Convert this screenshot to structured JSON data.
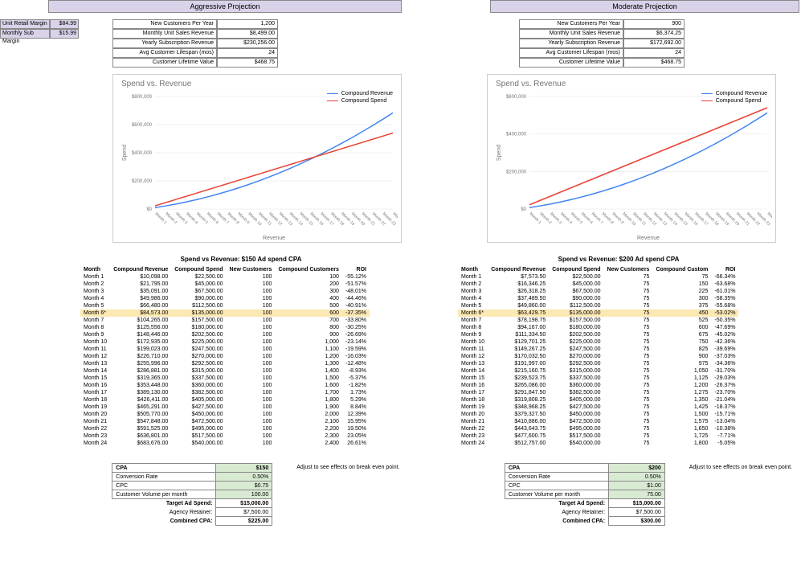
{
  "headers": {
    "aggressive": "Aggressive Projection",
    "moderate": "Moderate Projection"
  },
  "margins": {
    "retail_label": "Unit Retail Margin",
    "retail_val": "$84.99",
    "sub_label": "Monthly Sub Margin",
    "sub_val": "$15.99"
  },
  "metrics_labels": [
    "New Customers Per Year",
    "Monthly Unit Sales Revenue",
    "Yearly Subscription Revenue",
    "Avg Customer Lifespan (mos)",
    "Customer Lifetime Value"
  ],
  "agg_metrics": [
    "1,200",
    "$8,499.00",
    "$230,256.00",
    "24",
    "$468.75"
  ],
  "mod_metrics": [
    "900",
    "$6,374.25",
    "$172,692.00",
    "24",
    "$468.75"
  ],
  "chart": {
    "title": "Spend vs. Revenue",
    "legend_rev": "Compound Revenue",
    "legend_spend": "Compound Spend",
    "colors": {
      "revenue": "#4285f4",
      "spend": "#ea4335",
      "axis": "#757575",
      "grid": "#e0e0e0"
    },
    "xlabels": [
      "Month 1",
      "Month 2",
      "Month 3",
      "Month 4",
      "Month 5",
      "Month 6",
      "Month 7",
      "Month 8",
      "Month 9",
      "Month 10",
      "Month 11",
      "Month 12",
      "Month 13",
      "Month 14",
      "Month 15",
      "Month 16",
      "Month 17",
      "Month 18",
      "Month 19",
      "Month 20",
      "Month 21",
      "Month 22",
      "Month 23",
      "Month 24"
    ],
    "agg": {
      "ylim": [
        0,
        800000
      ],
      "ytick_step": 200000,
      "revenue": [
        10098,
        21795,
        35091,
        49986,
        66480,
        84573,
        104265,
        125556,
        148446,
        172935,
        199023,
        226710,
        255996,
        286881,
        319365,
        353448,
        389130,
        426411,
        465291,
        505770,
        547848,
        591525,
        636801,
        683676
      ],
      "spend": [
        22500,
        45000,
        67500,
        90000,
        112500,
        135000,
        157500,
        180000,
        202500,
        225000,
        247500,
        270000,
        292500,
        315000,
        337500,
        360000,
        382500,
        405000,
        427500,
        450000,
        472500,
        495000,
        517500,
        540000
      ]
    },
    "mod": {
      "ylim": [
        0,
        600000
      ],
      "ytick_step": 200000,
      "revenue": [
        7573,
        16346,
        26318,
        37489,
        49860,
        63429,
        78198,
        94167,
        111334,
        129701,
        149267,
        170032,
        191997,
        215160,
        239523,
        265086,
        291847,
        319808,
        348968,
        379327,
        410886,
        443643,
        477600,
        512757
      ],
      "spend": [
        22500,
        45000,
        67500,
        90000,
        112500,
        135000,
        157500,
        180000,
        202500,
        225000,
        247500,
        270000,
        292500,
        315000,
        337500,
        360000,
        382500,
        405000,
        427500,
        450000,
        472500,
        495000,
        517500,
        540000
      ]
    }
  },
  "tables": {
    "agg_title": "Spend vs Revenue: $150 Ad spend CPA",
    "mod_title": "Spend vs Revenue: $200 Ad spend CPA",
    "cols_full": [
      "Month",
      "Compound Revenue",
      "Compound Spend",
      "New Customers",
      "Compound Customers",
      "ROI"
    ],
    "cols_mod": [
      "Month",
      "Compound Revenue",
      "Compound Spend",
      "New Customers",
      "Compound Custom",
      "ROI"
    ],
    "highlight_idx": 5,
    "agg_rows": [
      [
        "Month 1",
        "$10,098.00",
        "$22,500.00",
        "100",
        "100",
        "-55.12%"
      ],
      [
        "Month 2",
        "$21,795.00",
        "$45,000.00",
        "100",
        "200",
        "-51.57%"
      ],
      [
        "Month 3",
        "$35,091.00",
        "$67,500.00",
        "100",
        "300",
        "-48.01%"
      ],
      [
        "Month 4",
        "$49,986.00",
        "$90,000.00",
        "100",
        "400",
        "-44.46%"
      ],
      [
        "Month 5",
        "$66,480.00",
        "$112,500.00",
        "100",
        "500",
        "-40.91%"
      ],
      [
        "Month 6*",
        "$84,573.00",
        "$135,000.00",
        "100",
        "600",
        "-37.35%"
      ],
      [
        "Month 7",
        "$104,265.00",
        "$157,500.00",
        "100",
        "700",
        "-33.80%"
      ],
      [
        "Month 8",
        "$125,556.00",
        "$180,000.00",
        "100",
        "800",
        "-30.25%"
      ],
      [
        "Month 9",
        "$148,446.00",
        "$202,500.00",
        "100",
        "900",
        "-26.69%"
      ],
      [
        "Month 10",
        "$172,935.00",
        "$225,000.00",
        "100",
        "1,000",
        "-23.14%"
      ],
      [
        "Month 11",
        "$199,023.00",
        "$247,500.00",
        "100",
        "1,100",
        "-19.59%"
      ],
      [
        "Month 12",
        "$226,710.00",
        "$270,000.00",
        "100",
        "1,200",
        "-16.03%"
      ],
      [
        "Month 13",
        "$255,996.00",
        "$292,500.00",
        "100",
        "1,300",
        "-12.48%"
      ],
      [
        "Month 14",
        "$286,881.00",
        "$315,000.00",
        "100",
        "1,400",
        "-8.93%"
      ],
      [
        "Month 15",
        "$319,365.00",
        "$337,500.00",
        "100",
        "1,500",
        "-5.37%"
      ],
      [
        "Month 16",
        "$353,448.00",
        "$360,000.00",
        "100",
        "1,600",
        "-1.82%"
      ],
      [
        "Month 17",
        "$389,130.00",
        "$382,500.00",
        "100",
        "1,700",
        "1.73%"
      ],
      [
        "Month 18",
        "$426,411.00",
        "$405,000.00",
        "100",
        "1,800",
        "5.29%"
      ],
      [
        "Month 19",
        "$465,291.00",
        "$427,500.00",
        "100",
        "1,900",
        "8.84%"
      ],
      [
        "Month 20",
        "$505,770.00",
        "$450,000.00",
        "100",
        "2,000",
        "12.39%"
      ],
      [
        "Month 21",
        "$547,848.00",
        "$472,500.00",
        "100",
        "2,100",
        "15.95%"
      ],
      [
        "Month 22",
        "$591,525.00",
        "$495,000.00",
        "100",
        "2,200",
        "19.50%"
      ],
      [
        "Month 23",
        "$636,801.00",
        "$517,500.00",
        "100",
        "2,300",
        "23.05%"
      ],
      [
        "Month 24",
        "$683,676.00",
        "$540,000.00",
        "100",
        "2,400",
        "26.61%"
      ]
    ],
    "mod_rows": [
      [
        "Month 1",
        "$7,573.50",
        "$22,500.00",
        "75",
        "75",
        "-66.34%"
      ],
      [
        "Month 2",
        "$16,346.25",
        "$45,000.00",
        "75",
        "150",
        "-63.68%"
      ],
      [
        "Month 3",
        "$26,318.25",
        "$67,500.00",
        "75",
        "225",
        "-61.01%"
      ],
      [
        "Month 4",
        "$37,489.50",
        "$90,000.00",
        "75",
        "300",
        "-58.35%"
      ],
      [
        "Month 5",
        "$49,860.00",
        "$112,500.00",
        "75",
        "375",
        "-55.68%"
      ],
      [
        "Month 6*",
        "$63,429.75",
        "$135,000.00",
        "75",
        "450",
        "-53.02%"
      ],
      [
        "Month 7",
        "$78,198.75",
        "$157,500.00",
        "75",
        "525",
        "-50.35%"
      ],
      [
        "Month 8",
        "$94,167.00",
        "$180,000.00",
        "75",
        "600",
        "-47.69%"
      ],
      [
        "Month 9",
        "$111,334.50",
        "$202,500.00",
        "75",
        "675",
        "-45.02%"
      ],
      [
        "Month 10",
        "$129,701.25",
        "$225,000.00",
        "75",
        "750",
        "-42.36%"
      ],
      [
        "Month 11",
        "$149,267.25",
        "$247,500.00",
        "75",
        "825",
        "-39.69%"
      ],
      [
        "Month 12",
        "$170,032.50",
        "$270,000.00",
        "75",
        "900",
        "-37.03%"
      ],
      [
        "Month 13",
        "$191,997.00",
        "$292,500.00",
        "75",
        "975",
        "-34.36%"
      ],
      [
        "Month 14",
        "$215,160.75",
        "$315,000.00",
        "75",
        "1,050",
        "-31.70%"
      ],
      [
        "Month 15",
        "$239,523.75",
        "$337,500.00",
        "75",
        "1,125",
        "-29.03%"
      ],
      [
        "Month 16",
        "$265,086.00",
        "$360,000.00",
        "75",
        "1,200",
        "-26.37%"
      ],
      [
        "Month 17",
        "$291,847.50",
        "$382,500.00",
        "75",
        "1,275",
        "-23.70%"
      ],
      [
        "Month 18",
        "$319,808.25",
        "$405,000.00",
        "75",
        "1,350",
        "-21.04%"
      ],
      [
        "Month 19",
        "$348,968.25",
        "$427,500.00",
        "75",
        "1,425",
        "-18.37%"
      ],
      [
        "Month 20",
        "$379,327.50",
        "$450,000.00",
        "75",
        "1,500",
        "-15.71%"
      ],
      [
        "Month 21",
        "$410,886.00",
        "$472,500.00",
        "75",
        "1,575",
        "-13.04%"
      ],
      [
        "Month 22",
        "$443,643.75",
        "$495,000.00",
        "75",
        "1,650",
        "-10.38%"
      ],
      [
        "Month 23",
        "$477,600.75",
        "$517,500.00",
        "75",
        "1,725",
        "-7.71%"
      ],
      [
        "Month 24",
        "$512,757.00",
        "$540,000.00",
        "75",
        "1,800",
        "-5.05%"
      ]
    ]
  },
  "be": {
    "note": "Adjust to see effects on break even point.",
    "rows_labels": [
      "CPA",
      "Conversion Rate",
      "CPC",
      "Customer Volume per month",
      "Target Ad Spend:",
      "Agency Retainer:",
      "Combined CPA:"
    ],
    "agg_vals": [
      "$150",
      "0.50%",
      "$0.75",
      "100.00",
      "$15,000.00",
      "$7,500.00",
      "$225.00"
    ],
    "mod_vals": [
      "$200",
      "0.50%",
      "$1.00",
      "75.00",
      "$15,000.00",
      "$7,500.00",
      "$300.00"
    ],
    "green_rows": [
      0,
      1,
      2,
      3
    ],
    "bold_rows": [
      0,
      4,
      6
    ]
  }
}
